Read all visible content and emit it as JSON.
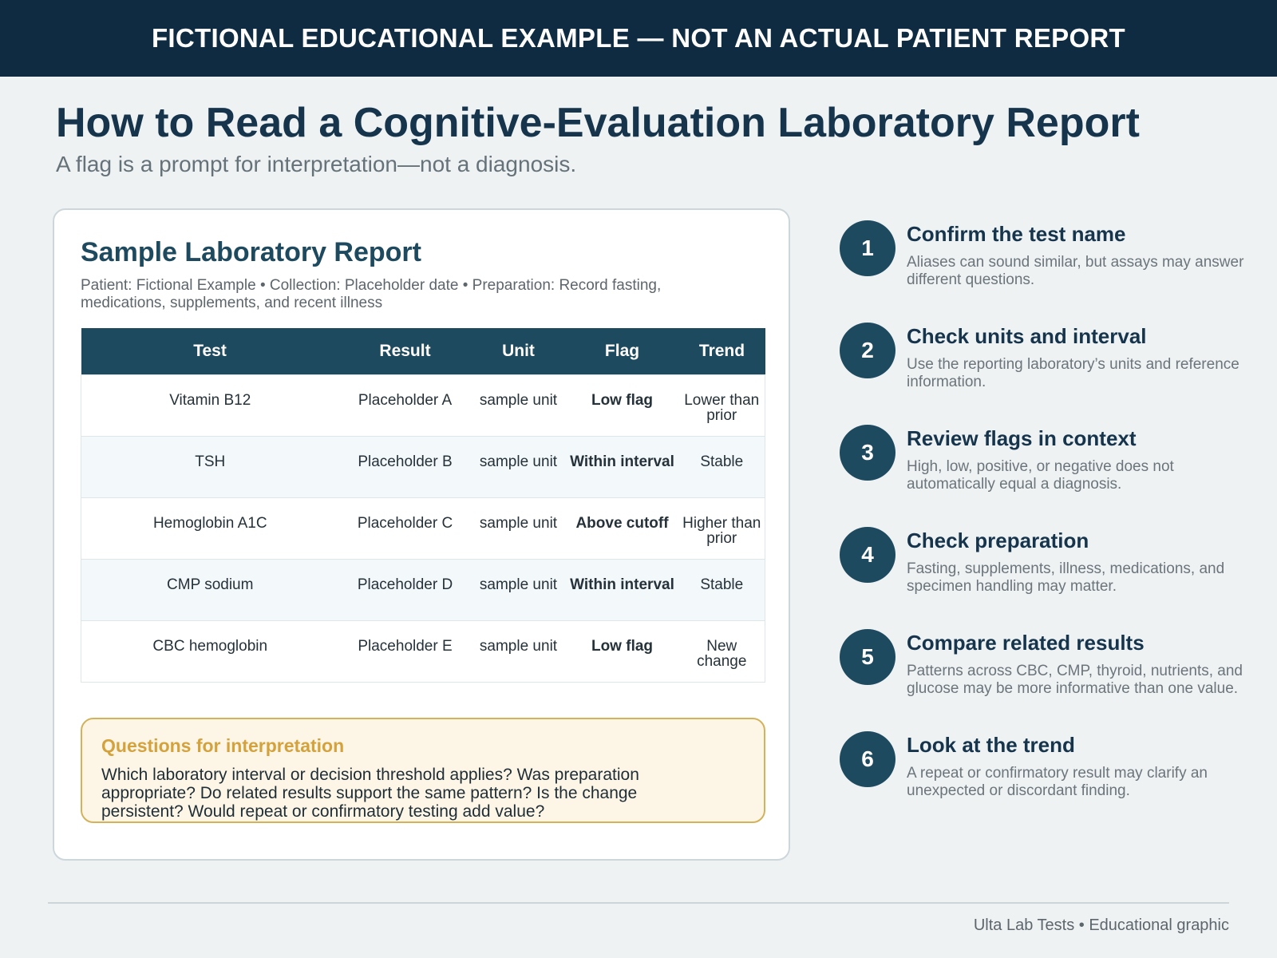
{
  "banner": "FICTIONAL EDUCATIONAL EXAMPLE — NOT AN ACTUAL PATIENT REPORT",
  "title": "How to Read a Cognitive-Evaluation Laboratory Report",
  "subtitle": "A flag is a prompt for interpretation—not a diagnosis.",
  "report": {
    "title": "Sample Laboratory Report",
    "meta": "Patient: Fictional Example • Collection: Placeholder date • Preparation: Record fasting, medications, supplements, and recent illness",
    "columns": [
      "Test",
      "Result",
      "Unit",
      "Flag",
      "Trend"
    ],
    "rows": [
      {
        "test": "Vitamin B12",
        "result": "Placeholder A",
        "unit": "sample unit",
        "flag": "Low flag",
        "trend": "Lower than prior"
      },
      {
        "test": "TSH",
        "result": "Placeholder B",
        "unit": "sample unit",
        "flag": "Within interval",
        "trend": "Stable"
      },
      {
        "test": "Hemoglobin A1C",
        "result": "Placeholder C",
        "unit": "sample unit",
        "flag": "Above cutoff",
        "trend": "Higher than prior"
      },
      {
        "test": "CMP sodium",
        "result": "Placeholder D",
        "unit": "sample unit",
        "flag": "Within interval",
        "trend": "Stable"
      },
      {
        "test": "CBC hemoglobin",
        "result": "Placeholder E",
        "unit": "sample unit",
        "flag": "Low flag",
        "trend": "New change"
      }
    ]
  },
  "questions": {
    "title": "Questions for interpretation",
    "body": "Which laboratory interval or decision threshold applies? Was preparation appropriate? Do related results support the same pattern? Is the change persistent? Would repeat or confirmatory testing add value?"
  },
  "steps": [
    {
      "num": "1",
      "title": "Confirm the test name",
      "desc": "Aliases can sound similar, but assays may answer different questions."
    },
    {
      "num": "2",
      "title": "Check units and interval",
      "desc": "Use the reporting laboratory’s units and reference information."
    },
    {
      "num": "3",
      "title": "Review flags in context",
      "desc": "High, low, positive, or negative does not automatically equal a diagnosis."
    },
    {
      "num": "4",
      "title": "Check preparation",
      "desc": "Fasting, supplements, illness, medications, and specimen handling may matter."
    },
    {
      "num": "5",
      "title": "Compare related results",
      "desc": "Patterns across CBC, CMP, thyroid, nutrients, and glucose may be more informative than one value."
    },
    {
      "num": "6",
      "title": "Look at the trend",
      "desc": "A repeat or confirmatory result may clarify an unexpected or discordant finding."
    }
  ],
  "footer": "Ulta Lab Tests • Educational graphic",
  "colors": {
    "banner": "#0f2b42",
    "accent": "#1e4a5f",
    "flag_alert": "#d9704a",
    "questions_border": "#d4b25a",
    "questions_bg": "#fdf6e6"
  }
}
